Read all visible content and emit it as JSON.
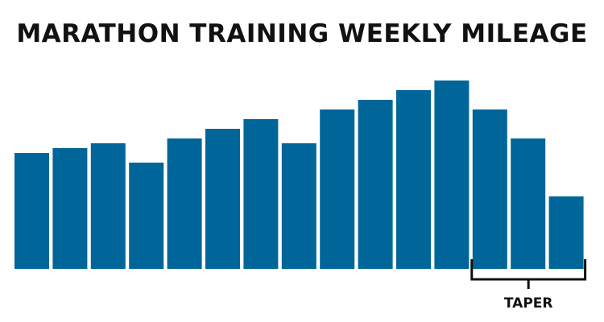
{
  "chart_data": {
    "type": "bar",
    "title": "MARATHON TRAINING WEEKLY MILEAGE",
    "values": [
      24,
      25,
      26,
      22,
      27,
      29,
      31,
      26,
      33,
      35,
      37,
      39,
      33,
      27,
      15
    ],
    "bar_color": "#006699",
    "grid": false,
    "axes_shown": false,
    "annotation": {
      "label": "TAPER",
      "span_bars": [
        13,
        15
      ],
      "style": "bracket"
    }
  }
}
